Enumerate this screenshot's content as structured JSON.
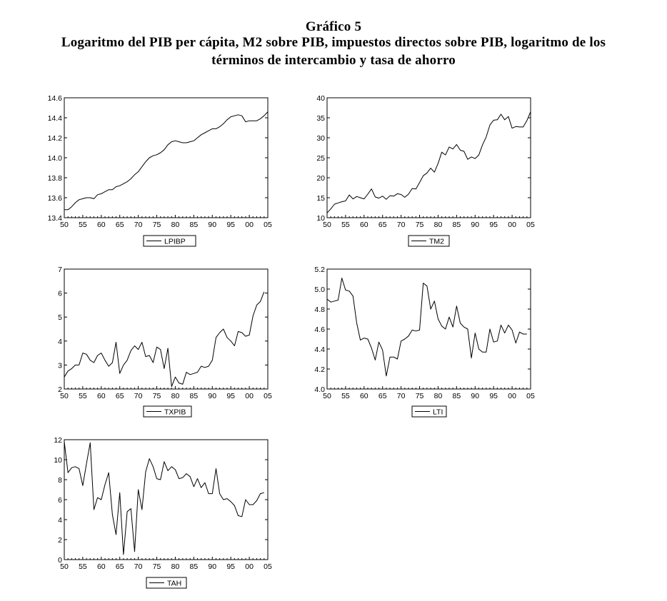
{
  "figure": {
    "title_line1": "Gráfico 5",
    "title_line2": "Logaritmo del PIB per cápita, M2 sobre PIB, impuestos directos sobre PIB, logaritmo de los",
    "title_line3": "términos de intercambio y tasa de ahorro"
  },
  "chart_data": [
    {
      "type": "line",
      "legend": "LPIBP",
      "x_tick_labels": [
        "50",
        "55",
        "60",
        "65",
        "70",
        "75",
        "80",
        "85",
        "90",
        "95",
        "00",
        "05"
      ],
      "y_ticks": [
        "13.4",
        "13.6",
        "13.8",
        "14.0",
        "14.2",
        "14.4",
        "14.6"
      ],
      "ylim": [
        13.4,
        14.6
      ],
      "x": [
        1950,
        1951,
        1952,
        1953,
        1954,
        1955,
        1956,
        1957,
        1958,
        1959,
        1960,
        1961,
        1962,
        1963,
        1964,
        1965,
        1966,
        1967,
        1968,
        1969,
        1970,
        1971,
        1972,
        1973,
        1974,
        1975,
        1976,
        1977,
        1978,
        1979,
        1980,
        1981,
        1982,
        1983,
        1984,
        1985,
        1986,
        1987,
        1988,
        1989,
        1990,
        1991,
        1992,
        1993,
        1994,
        1995,
        1996,
        1997,
        1998,
        1999,
        2000,
        2001,
        2002,
        2003,
        2004,
        2005
      ],
      "values": [
        13.48,
        13.48,
        13.51,
        13.55,
        13.58,
        13.59,
        13.6,
        13.6,
        13.59,
        13.63,
        13.64,
        13.66,
        13.68,
        13.68,
        13.71,
        13.72,
        13.74,
        13.76,
        13.79,
        13.83,
        13.86,
        13.91,
        13.96,
        14.0,
        14.02,
        14.03,
        14.05,
        14.08,
        14.13,
        14.16,
        14.17,
        14.16,
        14.15,
        14.15,
        14.16,
        14.17,
        14.2,
        14.23,
        14.25,
        14.27,
        14.29,
        14.29,
        14.31,
        14.34,
        14.38,
        14.41,
        14.42,
        14.43,
        14.42,
        14.36,
        14.37,
        14.37,
        14.37,
        14.39,
        14.42,
        14.46
      ]
    },
    {
      "type": "line",
      "legend": "TM2",
      "x_tick_labels": [
        "50",
        "55",
        "60",
        "65",
        "70",
        "75",
        "80",
        "85",
        "90",
        "95",
        "00",
        "05"
      ],
      "y_ticks": [
        "10",
        "15",
        "20",
        "25",
        "30",
        "35",
        "40"
      ],
      "ylim": [
        10,
        40
      ],
      "x": [
        1950,
        1951,
        1952,
        1953,
        1954,
        1955,
        1956,
        1957,
        1958,
        1959,
        1960,
        1961,
        1962,
        1963,
        1964,
        1965,
        1966,
        1967,
        1968,
        1969,
        1970,
        1971,
        1972,
        1973,
        1974,
        1975,
        1976,
        1977,
        1978,
        1979,
        1980,
        1981,
        1982,
        1983,
        1984,
        1985,
        1986,
        1987,
        1988,
        1989,
        1990,
        1991,
        1992,
        1993,
        1994,
        1995,
        1996,
        1997,
        1998,
        1999,
        2000,
        2001,
        2002,
        2003,
        2004,
        2005
      ],
      "values": [
        11.2,
        12.2,
        13.4,
        13.7,
        14.0,
        14.2,
        15.7,
        14.7,
        15.3,
        15.0,
        14.7,
        15.9,
        17.2,
        15.2,
        14.9,
        15.4,
        14.6,
        15.5,
        15.4,
        16.0,
        15.8,
        15.1,
        15.9,
        17.3,
        17.2,
        18.8,
        20.5,
        21.2,
        22.4,
        21.4,
        23.6,
        26.4,
        25.7,
        27.7,
        27.2,
        28.3,
        26.9,
        26.6,
        24.6,
        25.2,
        24.8,
        25.7,
        28.2,
        30.2,
        33.2,
        34.4,
        34.5,
        35.9,
        34.5,
        35.3,
        32.4,
        32.8,
        32.7,
        32.7,
        34.3,
        36.5
      ]
    },
    {
      "type": "line",
      "legend": "TXPIB",
      "x_tick_labels": [
        "50",
        "55",
        "60",
        "65",
        "70",
        "75",
        "80",
        "85",
        "90",
        "95",
        "00",
        "05"
      ],
      "y_ticks": [
        "2",
        "3",
        "4",
        "5",
        "6",
        "7"
      ],
      "ylim": [
        2,
        7
      ],
      "x": [
        1950,
        1951,
        1952,
        1953,
        1954,
        1955,
        1956,
        1957,
        1958,
        1959,
        1960,
        1961,
        1962,
        1963,
        1964,
        1965,
        1966,
        1967,
        1968,
        1969,
        1970,
        1971,
        1972,
        1973,
        1974,
        1975,
        1976,
        1977,
        1978,
        1979,
        1980,
        1981,
        1982,
        1983,
        1984,
        1985,
        1986,
        1987,
        1988,
        1989,
        1990,
        1991,
        1992,
        1993,
        1994,
        1995,
        1996,
        1997,
        1998,
        1999,
        2000,
        2001,
        2002,
        2003,
        2004
      ],
      "values": [
        2.5,
        2.75,
        2.85,
        3.0,
        3.0,
        3.5,
        3.45,
        3.2,
        3.1,
        3.4,
        3.5,
        3.2,
        2.95,
        3.1,
        3.95,
        2.65,
        3.0,
        3.2,
        3.6,
        3.8,
        3.65,
        3.95,
        3.35,
        3.4,
        3.1,
        3.75,
        3.65,
        2.85,
        3.7,
        2.1,
        2.5,
        2.25,
        2.2,
        2.7,
        2.6,
        2.65,
        2.7,
        2.95,
        2.9,
        2.95,
        3.2,
        4.15,
        4.35,
        4.5,
        4.15,
        4.0,
        3.8,
        4.4,
        4.35,
        4.2,
        4.25,
        5.05,
        5.5,
        5.65,
        6.05
      ]
    },
    {
      "type": "line",
      "legend": "LTI",
      "x_tick_labels": [
        "50",
        "55",
        "60",
        "65",
        "70",
        "75",
        "80",
        "85",
        "90",
        "95",
        "00",
        "05"
      ],
      "y_ticks": [
        "4.0",
        "4.2",
        "4.4",
        "4.6",
        "4.8",
        "5.0",
        "5.2"
      ],
      "ylim": [
        4.0,
        5.2
      ],
      "x": [
        1950,
        1951,
        1952,
        1953,
        1954,
        1955,
        1956,
        1957,
        1958,
        1959,
        1960,
        1961,
        1962,
        1963,
        1964,
        1965,
        1966,
        1967,
        1968,
        1969,
        1970,
        1971,
        1972,
        1973,
        1974,
        1975,
        1976,
        1977,
        1978,
        1979,
        1980,
        1981,
        1982,
        1983,
        1984,
        1985,
        1986,
        1987,
        1988,
        1989,
        1990,
        1991,
        1992,
        1993,
        1994,
        1995,
        1996,
        1997,
        1998,
        1999,
        2000,
        2001,
        2002,
        2003,
        2004
      ],
      "values": [
        4.9,
        4.87,
        4.88,
        4.89,
        5.11,
        4.99,
        4.98,
        4.93,
        4.66,
        4.49,
        4.51,
        4.5,
        4.41,
        4.29,
        4.47,
        4.39,
        4.13,
        4.32,
        4.32,
        4.3,
        4.48,
        4.5,
        4.53,
        4.59,
        4.58,
        4.59,
        5.06,
        5.03,
        4.8,
        4.88,
        4.7,
        4.63,
        4.6,
        4.72,
        4.62,
        4.83,
        4.66,
        4.62,
        4.6,
        4.31,
        4.56,
        4.4,
        4.37,
        4.37,
        4.6,
        4.47,
        4.48,
        4.64,
        4.56,
        4.64,
        4.59,
        4.46,
        4.57,
        4.55,
        4.55
      ]
    },
    {
      "type": "line",
      "legend": "TAH",
      "x_tick_labels": [
        "50",
        "55",
        "60",
        "65",
        "70",
        "75",
        "80",
        "85",
        "90",
        "95",
        "00",
        "05"
      ],
      "y_ticks": [
        "0",
        "2",
        "4",
        "6",
        "8",
        "10",
        "12"
      ],
      "ylim": [
        0,
        12
      ],
      "x": [
        1950,
        1951,
        1952,
        1953,
        1954,
        1955,
        1956,
        1957,
        1958,
        1959,
        1960,
        1961,
        1962,
        1963,
        1964,
        1965,
        1966,
        1967,
        1968,
        1969,
        1970,
        1971,
        1972,
        1973,
        1974,
        1975,
        1976,
        1977,
        1978,
        1979,
        1980,
        1981,
        1982,
        1983,
        1984,
        1985,
        1986,
        1987,
        1988,
        1989,
        1990,
        1991,
        1992,
        1993,
        1994,
        1995,
        1996,
        1997,
        1998,
        1999,
        2000,
        2001,
        2002,
        2003,
        2004
      ],
      "values": [
        11.8,
        8.7,
        9.2,
        9.3,
        9.1,
        7.4,
        9.6,
        11.7,
        5.0,
        6.2,
        6.0,
        7.5,
        8.7,
        4.5,
        2.5,
        6.7,
        0.5,
        4.8,
        5.1,
        0.8,
        7.0,
        5.0,
        8.8,
        10.1,
        9.3,
        8.1,
        8.0,
        9.8,
        8.9,
        9.3,
        9.0,
        8.1,
        8.2,
        8.6,
        8.3,
        7.3,
        8.1,
        7.2,
        7.7,
        6.6,
        6.6,
        9.1,
        6.6,
        6.0,
        6.1,
        5.8,
        5.4,
        4.4,
        4.3,
        6.0,
        5.5,
        5.5,
        5.9,
        6.6,
        6.7
      ]
    }
  ]
}
